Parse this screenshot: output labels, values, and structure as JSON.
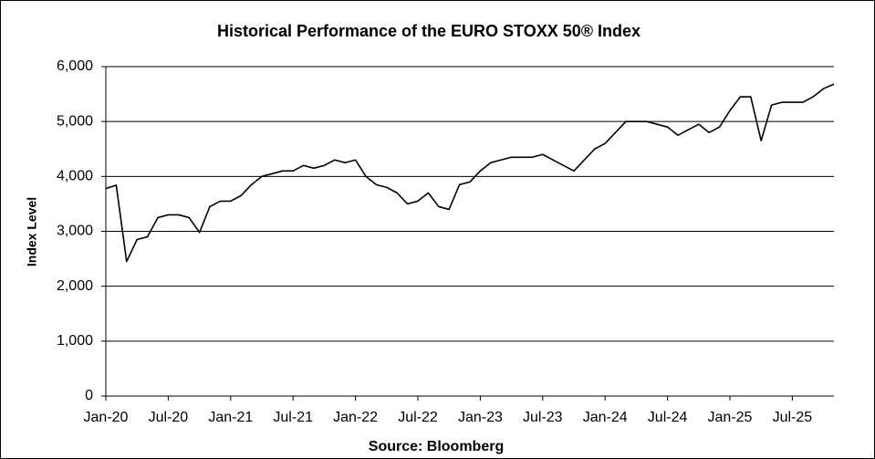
{
  "chart_data": {
    "type": "line",
    "title": "Historical Performance of the EURO STOXX 50® Index",
    "y_label": "Index Level",
    "source": "Source: Bloomberg",
    "x": [
      "2020-01",
      "2020-02",
      "2020-03",
      "2020-04",
      "2020-05",
      "2020-06",
      "2020-07",
      "2020-08",
      "2020-09",
      "2020-10",
      "2020-11",
      "2020-12",
      "2021-01",
      "2021-02",
      "2021-03",
      "2021-04",
      "2021-05",
      "2021-06",
      "2021-07",
      "2021-08",
      "2021-09",
      "2021-10",
      "2021-11",
      "2021-12",
      "2022-01",
      "2022-02",
      "2022-03",
      "2022-04",
      "2022-05",
      "2022-06",
      "2022-07",
      "2022-08",
      "2022-09",
      "2022-10",
      "2022-11",
      "2022-12",
      "2023-01",
      "2023-02",
      "2023-03",
      "2023-04",
      "2023-05",
      "2023-06",
      "2023-07",
      "2023-08",
      "2023-09",
      "2023-10",
      "2023-11",
      "2023-12",
      "2024-01",
      "2024-02",
      "2024-03",
      "2024-04",
      "2024-05",
      "2024-06",
      "2024-07",
      "2024-08",
      "2024-09",
      "2024-10",
      "2024-11",
      "2024-12",
      "2025-01",
      "2025-02",
      "2025-03",
      "2025-04",
      "2025-05",
      "2025-06",
      "2025-07",
      "2025-08",
      "2025-09",
      "2025-10",
      "2025-11"
    ],
    "series": [
      {
        "name": "EURO STOXX 50",
        "color": "#000000",
        "values": [
          3780,
          3840,
          2450,
          2850,
          2900,
          3250,
          3300,
          3300,
          3250,
          2980,
          3450,
          3550,
          3550,
          3650,
          3850,
          4000,
          4050,
          4100,
          4100,
          4200,
          4150,
          4200,
          4300,
          4250,
          4300,
          4000,
          3850,
          3800,
          3700,
          3500,
          3550,
          3700,
          3450,
          3400,
          3850,
          3900,
          4100,
          4250,
          4300,
          4350,
          4350,
          4350,
          4400,
          4300,
          4200,
          4100,
          4300,
          4500,
          4600,
          4800,
          5000,
          5000,
          5000,
          4950,
          4900,
          4750,
          4850,
          4950,
          4800,
          4900,
          5200,
          5450,
          5450,
          4650,
          5300,
          5350,
          5350,
          5350,
          5450,
          5600,
          5680
        ]
      }
    ],
    "xlim": [
      "2020-01",
      "2025-11"
    ],
    "xticks": [
      {
        "value": "2020-01",
        "label": "Jan-20"
      },
      {
        "value": "2020-07",
        "label": "Jul-20"
      },
      {
        "value": "2021-01",
        "label": "Jan-21"
      },
      {
        "value": "2021-07",
        "label": "Jul-21"
      },
      {
        "value": "2022-01",
        "label": "Jan-22"
      },
      {
        "value": "2022-07",
        "label": "Jul-22"
      },
      {
        "value": "2023-01",
        "label": "Jan-23"
      },
      {
        "value": "2023-07",
        "label": "Jul-23"
      },
      {
        "value": "2024-01",
        "label": "Jan-24"
      },
      {
        "value": "2024-07",
        "label": "Jul-24"
      },
      {
        "value": "2025-01",
        "label": "Jan-25"
      },
      {
        "value": "2025-07",
        "label": "Jul-25"
      }
    ],
    "ylim": [
      0,
      6000
    ],
    "yticks": [
      0,
      {
        "value": 1000,
        "label": "1,000"
      },
      {
        "value": 2000,
        "label": "2,000"
      },
      {
        "value": 3000,
        "label": "3,000"
      },
      {
        "value": 4000,
        "label": "4,000"
      },
      {
        "value": 5000,
        "label": "5,000"
      },
      {
        "value": 6000,
        "label": "6,000"
      }
    ],
    "grid": true
  }
}
